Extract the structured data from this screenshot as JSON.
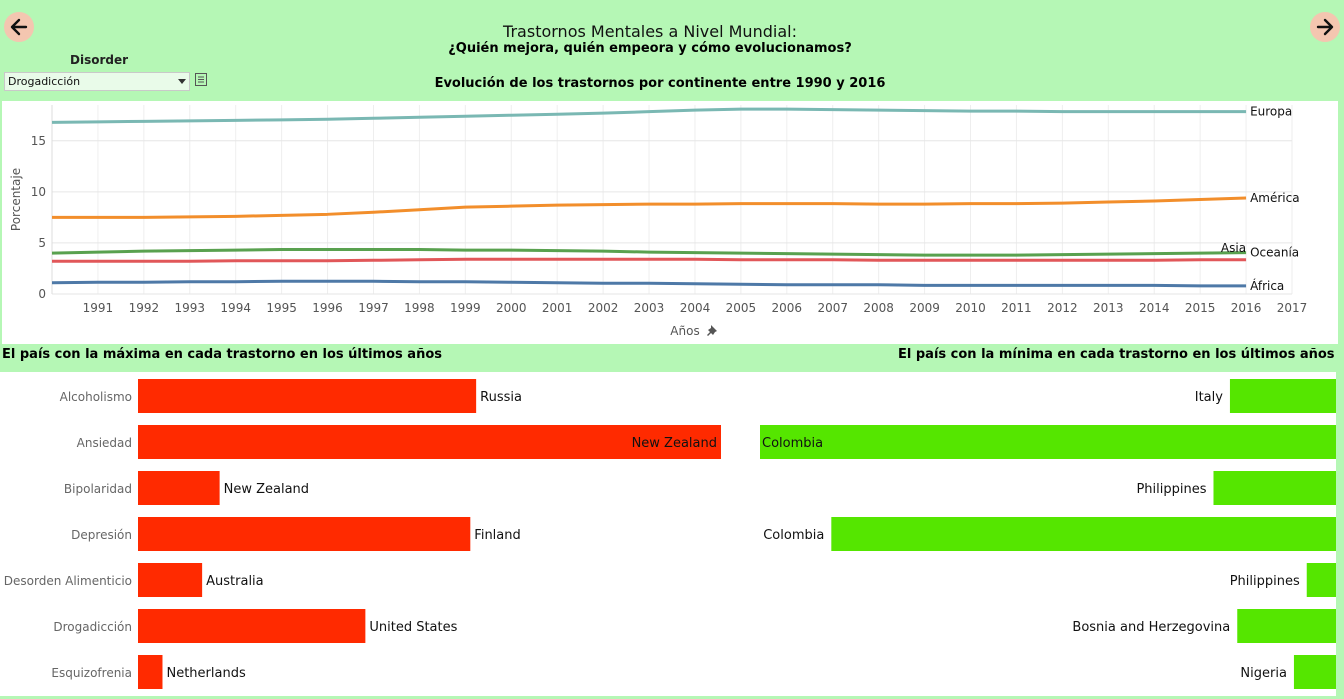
{
  "header": {
    "title": "Trastornos Mentales a Nivel Mundial:",
    "subtitle": "¿Quién mejora, quién empeora y cómo evolucionamos?"
  },
  "filter": {
    "label": "Disorder",
    "selected": "Drogadicción"
  },
  "line_section": {
    "title": "Evolución de los trastornos por continente entre 1990 y 2016"
  },
  "bars_section": {
    "left_title": "El país con la máxima en cada trastorno en los últimos años",
    "right_title": "El país con la mínima en cada trastorno en los últimos años"
  },
  "colors": {
    "background": "#b5f7b5",
    "max_bar": "#ff2a00",
    "min_bar": "#55e600",
    "nav_button": "#f4c6b0"
  },
  "icons": {
    "back": "arrow-left-icon",
    "next": "arrow-right-icon",
    "filter": "list-icon",
    "pin": "pin-icon"
  },
  "chart_data": [
    {
      "type": "line",
      "xlabel": "Años",
      "ylabel": "Porcentaje",
      "x": [
        1990,
        1991,
        1992,
        1993,
        1994,
        1995,
        1996,
        1997,
        1998,
        1999,
        2000,
        2001,
        2002,
        2003,
        2004,
        2005,
        2006,
        2007,
        2008,
        2009,
        2010,
        2011,
        2012,
        2013,
        2014,
        2015,
        2016
      ],
      "xlim": [
        1990,
        2017
      ],
      "ylim": [
        0,
        18.5
      ],
      "yticks": [
        0,
        5,
        10,
        15
      ],
      "grid": true,
      "series": [
        {
          "name": "Europa",
          "color": "#7ab8b3",
          "values": [
            16.8,
            16.85,
            16.9,
            16.95,
            17.0,
            17.05,
            17.1,
            17.2,
            17.3,
            17.4,
            17.5,
            17.6,
            17.7,
            17.85,
            18.0,
            18.1,
            18.1,
            18.05,
            18.0,
            17.95,
            17.9,
            17.9,
            17.85,
            17.85,
            17.85,
            17.85,
            17.85
          ]
        },
        {
          "name": "América",
          "color": "#f28e2b",
          "values": [
            7.5,
            7.5,
            7.5,
            7.55,
            7.6,
            7.7,
            7.8,
            8.0,
            8.25,
            8.5,
            8.6,
            8.7,
            8.75,
            8.8,
            8.8,
            8.85,
            8.85,
            8.85,
            8.8,
            8.8,
            8.85,
            8.85,
            8.9,
            9.0,
            9.1,
            9.25,
            9.4
          ]
        },
        {
          "name": "Oceanía",
          "color": "#59a14f",
          "values": [
            4.0,
            4.1,
            4.2,
            4.25,
            4.3,
            4.35,
            4.35,
            4.35,
            4.35,
            4.3,
            4.3,
            4.25,
            4.2,
            4.1,
            4.05,
            4.0,
            3.95,
            3.9,
            3.85,
            3.8,
            3.8,
            3.8,
            3.85,
            3.9,
            3.95,
            4.0,
            4.05
          ]
        },
        {
          "name": "Asia",
          "color": "#e15759",
          "values": [
            3.2,
            3.2,
            3.2,
            3.2,
            3.25,
            3.25,
            3.25,
            3.3,
            3.35,
            3.4,
            3.4,
            3.4,
            3.4,
            3.4,
            3.4,
            3.35,
            3.35,
            3.35,
            3.3,
            3.3,
            3.3,
            3.3,
            3.3,
            3.3,
            3.3,
            3.35,
            3.35
          ]
        },
        {
          "name": "África",
          "color": "#4e79a7",
          "values": [
            1.1,
            1.15,
            1.15,
            1.2,
            1.2,
            1.25,
            1.25,
            1.25,
            1.2,
            1.2,
            1.15,
            1.1,
            1.05,
            1.05,
            1.0,
            0.95,
            0.9,
            0.9,
            0.9,
            0.85,
            0.85,
            0.85,
            0.85,
            0.85,
            0.85,
            0.8,
            0.8
          ]
        }
      ]
    },
    {
      "type": "bar",
      "orientation": "horizontal",
      "categories": [
        "Alcoholismo",
        "Ansiedad",
        "Bipolaridad",
        "Depresión",
        "Desorden Alimenticio",
        "Drogadicción",
        "Esquizofrenia"
      ],
      "countries": [
        "Russia",
        "New Zealand",
        "New Zealand",
        "Finland",
        "Australia",
        "United States",
        "Netherlands"
      ],
      "values": [
        5.8,
        10.0,
        1.4,
        5.7,
        1.1,
        3.9,
        0.42
      ],
      "xlim": [
        0,
        10.0
      ]
    },
    {
      "type": "bar",
      "orientation": "horizontal",
      "direction": "right-to-left",
      "categories": [
        "Alcoholismo",
        "Ansiedad",
        "Bipolaridad",
        "Depresión",
        "Desorden Alimenticio",
        "Drogadicción",
        "Esquizofrenia"
      ],
      "countries": [
        "Italy",
        "Colombia",
        "Philippines",
        "Colombia",
        "Philippines",
        "Bosnia and Herzegovina",
        "Nigeria"
      ],
      "values": [
        0.58,
        3.15,
        0.67,
        2.76,
        0.16,
        0.54,
        0.23
      ],
      "xlim": [
        0,
        3.15
      ]
    }
  ]
}
